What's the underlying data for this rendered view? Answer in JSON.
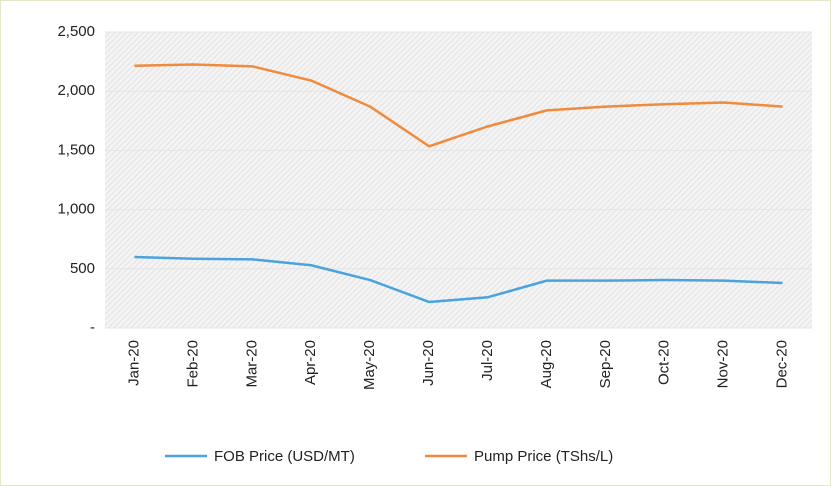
{
  "chart_data": {
    "type": "line",
    "categories": [
      "Jan-20",
      "Feb-20",
      "Mar-20",
      "Apr-20",
      "May-20",
      "Jun-20",
      "Jul-20",
      "Aug-20",
      "Sep-20",
      "Oct-20",
      "Nov-20",
      "Dec-20"
    ],
    "series": [
      {
        "name": "FOB Price (USD/MT)",
        "color": "#4aa3df",
        "values": [
          600,
          585,
          580,
          530,
          405,
          220,
          260,
          400,
          400,
          405,
          400,
          380
        ]
      },
      {
        "name": "Pump Price (TShs/L)",
        "color": "#f08a3c",
        "values": [
          2215,
          2226,
          2210,
          2090,
          1870,
          1535,
          1703,
          1838,
          1870,
          1890,
          1905,
          1870
        ]
      }
    ],
    "ylim": [
      0,
      2500
    ],
    "yticks": [
      {
        "value": 0,
        "label": "-"
      },
      500,
      {
        "value": 1000,
        "label": "1,000"
      },
      {
        "value": 1500,
        "label": "1,500"
      },
      {
        "value": 2000,
        "label": "2,000"
      },
      {
        "value": 2500,
        "label": "2,500"
      }
    ],
    "grid": true,
    "legend": "bottom"
  }
}
